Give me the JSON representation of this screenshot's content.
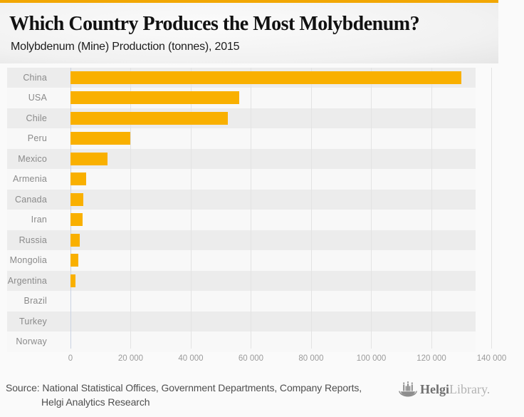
{
  "header": {
    "title": "Which Country Produces the Most Molybdenum?",
    "subtitle": "Molybdenum (Mine) Production (tonnes), 2015"
  },
  "chart_data": {
    "type": "bar",
    "orientation": "horizontal",
    "title": "Which Country Produces the Most Molybdenum?",
    "subtitle": "Molybdenum (Mine) Production (tonnes), 2015",
    "categories": [
      "China",
      "USA",
      "Chile",
      "Peru",
      "Mexico",
      "Armenia",
      "Canada",
      "Iran",
      "Russia",
      "Mongolia",
      "Argentina",
      "Brazil",
      "Turkey",
      "Norway"
    ],
    "values": [
      130000,
      56000,
      52300,
      19900,
      12300,
      5200,
      4200,
      4000,
      3100,
      2700,
      1700,
      0,
      0,
      0
    ],
    "xlim": [
      0,
      140000
    ],
    "x_ticks": [
      0,
      20000,
      40000,
      60000,
      80000,
      100000,
      120000,
      140000
    ],
    "x_tick_labels": [
      "0",
      "20 000",
      "40 000",
      "60 000",
      "80 000",
      "100 000",
      "120 000",
      "140 000"
    ],
    "xlabel": "",
    "ylabel": "",
    "grid": true,
    "legend": false,
    "bar_color": "#F9B000",
    "zero_line_color": "#c9d2e2",
    "gridline_color": "#e3e3e3",
    "row_stripe_odd": "#ececec",
    "row_stripe_even": "#f8f8f8"
  },
  "footer": {
    "source_line1": "Source: National Statistical Offices, Government Departments, Company Reports,",
    "source_line2": "Helgi Analytics Research",
    "logo": {
      "brand_primary": "Helgi",
      "brand_secondary": "Library."
    }
  },
  "colors": {
    "accent": "#F2A702",
    "background": "#fafafa",
    "title_text": "#111111",
    "label_text": "#8a8a8a",
    "source_text": "#4e4e4e"
  }
}
